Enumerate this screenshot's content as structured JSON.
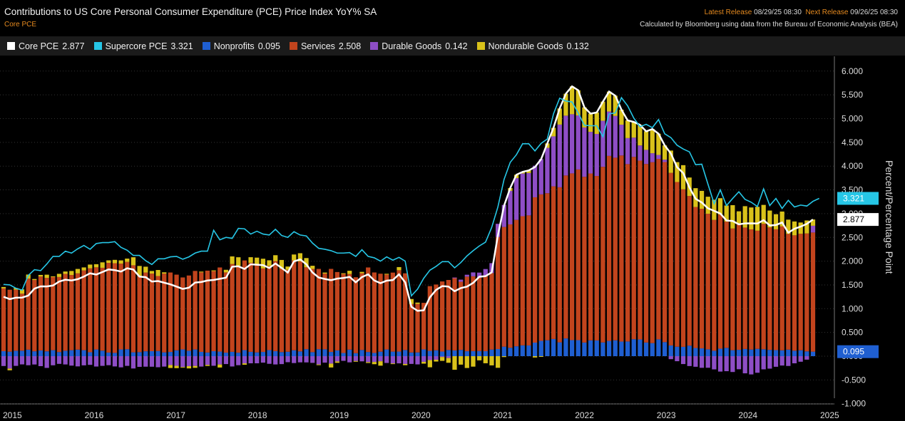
{
  "header": {
    "title": "Contributions to US Core Personal Consumer Expenditure (PCE) Price Index YoY% SA",
    "subtitle": "Core PCE",
    "latest_release_label": "Latest Release",
    "latest_release_value": "08/29/25 08:30",
    "next_release_label": "Next Release",
    "next_release_value": "09/26/25 08:30",
    "source": "Calculated by Bloomberg using data from the Bureau of Economic Analysis (BEA)"
  },
  "legend": [
    {
      "name": "Core PCE",
      "value": "2.877",
      "color": "#ffffff"
    },
    {
      "name": "Supercore PCE",
      "value": "3.321",
      "color": "#26c6e6"
    },
    {
      "name": "Nonprofits",
      "value": "0.095",
      "color": "#1f5fd1"
    },
    {
      "name": "Services",
      "value": "2.508",
      "color": "#c2441d"
    },
    {
      "name": "Durable Goods",
      "value": "0.142",
      "color": "#8e4ec6"
    },
    {
      "name": "Nondurable Goods",
      "value": "0.132",
      "color": "#d9c21a"
    }
  ],
  "chart_data": {
    "type": "bar",
    "ylabel": "Percent/Percentage Point",
    "ylim": [
      -1.0,
      6.25
    ],
    "y_ticks": [
      "6.000",
      "5.500",
      "5.000",
      "4.500",
      "4.000",
      "3.500",
      "3.000",
      "2.500",
      "2.000",
      "1.500",
      "1.000",
      "0.500",
      "0.000",
      "-0.500",
      "-1.000"
    ],
    "x_ticks": [
      "2015",
      "2016",
      "2017",
      "2018",
      "2019",
      "2020",
      "2021",
      "2022",
      "2023",
      "2024",
      "2025"
    ],
    "series": [
      {
        "name": "Core PCE",
        "type": "line",
        "values": [
          1.25,
          1.201,
          1.232,
          1.234,
          1.276,
          1.421,
          1.47,
          1.468,
          1.488,
          1.571,
          1.609,
          1.594,
          1.621,
          1.675,
          1.744,
          1.718,
          1.771,
          1.826,
          1.811,
          1.781,
          1.85,
          1.823,
          1.675,
          1.662,
          1.571,
          1.581,
          1.546,
          1.512,
          1.464,
          1.415,
          1.441,
          1.549,
          1.561,
          1.593,
          1.604,
          1.628,
          1.652,
          1.883,
          1.892,
          1.835,
          1.934,
          1.924,
          1.915,
          1.857,
          1.951,
          1.858,
          1.76,
          1.995,
          2.037,
          1.934,
          1.762,
          1.655,
          1.625,
          1.599,
          1.632,
          1.646,
          1.668,
          1.555,
          1.665,
          1.722,
          1.593,
          1.536,
          1.59,
          1.602,
          1.723,
          1.553,
          1.04,
          0.955,
          0.966,
          1.24,
          1.395,
          1.474,
          1.465,
          1.368,
          1.433,
          1.465,
          1.543,
          1.672,
          1.685,
          1.764,
          2.541,
          3.166,
          3.538,
          3.819,
          3.878,
          3.91,
          3.981,
          4.147,
          4.478,
          4.806,
          5.213,
          5.523,
          5.679,
          5.596,
          5.237,
          5.105,
          5.13,
          5.357,
          5.569,
          5.483,
          5.188,
          4.963,
          4.929,
          4.868,
          4.732,
          4.781,
          4.682,
          4.436,
          4.265,
          3.978,
          3.854,
          3.552,
          3.313,
          3.234,
          3.112,
          3.059,
          3.001,
          2.855,
          2.845,
          2.774,
          2.795,
          2.797,
          2.793,
          2.862,
          2.751,
          2.761,
          2.814,
          2.599,
          2.681,
          2.727,
          2.785,
          2.877
        ],
        "color": "#ffffff"
      },
      {
        "name": "Supercore PCE",
        "type": "line",
        "values": [
          1.51,
          1.5,
          1.43,
          1.39,
          1.7,
          1.82,
          1.8,
          1.94,
          2.1,
          2.1,
          2.21,
          2.17,
          2.26,
          2.33,
          2.25,
          2.37,
          2.39,
          2.39,
          2.41,
          2.29,
          2.23,
          2.12,
          2.12,
          2.01,
          1.93,
          2.05,
          2.05,
          2.09,
          2.1,
          2.04,
          2.09,
          2.17,
          2.21,
          2.21,
          2.65,
          2.45,
          2.5,
          2.48,
          2.69,
          2.68,
          2.57,
          2.63,
          2.57,
          2.55,
          2.67,
          2.54,
          2.5,
          2.62,
          2.55,
          2.53,
          2.38,
          2.27,
          2.25,
          2.22,
          2.17,
          2.17,
          2.18,
          2.1,
          2.24,
          2.1,
          2.07,
          2.0,
          2.09,
          2.02,
          2.08,
          2.0,
          1.27,
          1.41,
          1.64,
          1.81,
          1.89,
          1.99,
          1.99,
          1.86,
          1.97,
          2.11,
          2.22,
          2.32,
          2.4,
          2.71,
          3.14,
          3.72,
          4.08,
          4.24,
          4.47,
          4.47,
          4.32,
          4.48,
          4.57,
          5.1,
          5.43,
          5.37,
          5.35,
          5.12,
          4.86,
          4.85,
          4.85,
          4.62,
          5.1,
          5.12,
          5.44,
          5.27,
          5.01,
          4.83,
          4.88,
          4.81,
          4.98,
          4.68,
          4.6,
          4.44,
          4.36,
          4.3,
          4.03,
          4.04,
          3.62,
          3.21,
          3.5,
          3.17,
          3.32,
          3.46,
          3.3,
          3.24,
          3.15,
          3.52,
          3.17,
          3.32,
          3.11,
          3.28,
          3.14,
          3.18,
          3.16,
          3.26,
          3.321
        ],
        "color": "#26c6e6"
      },
      {
        "name": "Nonprofits",
        "type": "stacked_bar",
        "values": [
          0.105,
          0.095,
          0.114,
          0.115,
          0.137,
          0.103,
          0.121,
          0.102,
          0.126,
          0.087,
          0.114,
          0.126,
          0.138,
          0.126,
          0.083,
          0.141,
          0.116,
          0.076,
          0.069,
          0.142,
          0.147,
          0.081,
          0.085,
          0.103,
          0.105,
          0.108,
          0.08,
          0.089,
          0.123,
          0.142,
          0.114,
          0.141,
          0.09,
          0.077,
          0.105,
          0.097,
          0.074,
          0.091,
          0.073,
          0.127,
          0.091,
          0.08,
          0.089,
          0.128,
          0.106,
          0.086,
          0.093,
          0.124,
          0.101,
          0.147,
          0.085,
          0.147,
          0.144,
          0.089,
          0.121,
          0.067,
          0.138,
          0.063,
          0.13,
          0.088,
          0.068,
          0.095,
          0.141,
          0.096,
          0.097,
          0.129,
          0.078,
          0.079,
          0.142,
          0.112,
          0.124,
          0.097,
          0.13,
          0.121,
          0.133,
          0.104,
          0.107,
          0.109,
          0.105,
          0.14,
          0.15,
          0.2,
          0.177,
          0.208,
          0.228,
          0.226,
          0.285,
          0.322,
          0.335,
          0.361,
          0.291,
          0.373,
          0.338,
          0.337,
          0.287,
          0.333,
          0.331,
          0.289,
          0.321,
          0.334,
          0.307,
          0.309,
          0.357,
          0.352,
          0.288,
          0.275,
          0.354,
          0.296,
          0.226,
          0.199,
          0.196,
          0.222,
          0.172,
          0.164,
          0.144,
          0.114,
          0.158,
          0.175,
          0.126,
          0.134,
          0.151,
          0.14,
          0.155,
          0.145,
          0.133,
          0.128,
          0.123,
          0.138,
          0.115,
          0.125,
          0.101,
          0.095
        ],
        "color": "#1f5fd1"
      },
      {
        "name": "Services",
        "type": "stacked_bar",
        "values": [
          1.321,
          1.304,
          1.285,
          1.2,
          1.495,
          1.5,
          1.555,
          1.545,
          1.553,
          1.579,
          1.618,
          1.582,
          1.605,
          1.679,
          1.765,
          1.729,
          1.744,
          1.887,
          1.887,
          1.806,
          1.837,
          1.832,
          1.6,
          1.657,
          1.633,
          1.579,
          1.658,
          1.672,
          1.593,
          1.515,
          1.584,
          1.653,
          1.674,
          1.723,
          1.685,
          1.77,
          1.689,
          1.848,
          1.828,
          1.888,
          1.874,
          1.843,
          1.757,
          1.771,
          1.895,
          1.754,
          1.725,
          1.892,
          1.892,
          1.723,
          1.75,
          1.69,
          1.595,
          1.748,
          1.65,
          1.669,
          1.592,
          1.598,
          1.615,
          1.779,
          1.694,
          1.641,
          1.581,
          1.663,
          1.712,
          1.615,
          1.019,
          1.02,
          0.981,
          1.362,
          1.384,
          1.476,
          1.474,
          1.533,
          1.433,
          1.57,
          1.574,
          1.543,
          1.596,
          1.608,
          2.358,
          2.519,
          2.597,
          2.661,
          2.718,
          2.737,
          3.059,
          3.083,
          3.095,
          3.213,
          3.264,
          3.43,
          3.509,
          3.593,
          3.488,
          3.512,
          3.461,
          3.696,
          3.894,
          3.843,
          3.917,
          3.733,
          3.837,
          3.764,
          3.757,
          3.808,
          3.798,
          3.789,
          3.632,
          3.467,
          3.316,
          3.149,
          2.968,
          2.938,
          2.853,
          2.754,
          2.823,
          2.656,
          2.561,
          2.644,
          2.556,
          2.529,
          2.486,
          2.639,
          2.577,
          2.542,
          2.608,
          2.436,
          2.429,
          2.451,
          2.482,
          2.508
        ],
        "color": "#c2441d"
      },
      {
        "name": "Durable Goods",
        "type": "stacked_bar",
        "values": [
          -0.207,
          -0.261,
          -0.204,
          -0.173,
          -0.191,
          -0.175,
          -0.21,
          -0.247,
          -0.192,
          -0.162,
          -0.174,
          -0.199,
          -0.215,
          -0.193,
          -0.183,
          -0.218,
          -0.204,
          -0.19,
          -0.216,
          -0.235,
          -0.204,
          -0.259,
          -0.225,
          -0.221,
          -0.222,
          -0.233,
          -0.219,
          -0.186,
          -0.203,
          -0.228,
          -0.21,
          -0.205,
          -0.219,
          -0.184,
          -0.202,
          -0.175,
          -0.166,
          -0.217,
          -0.19,
          -0.151,
          -0.15,
          -0.15,
          -0.136,
          -0.161,
          -0.174,
          -0.167,
          -0.127,
          -0.145,
          -0.13,
          -0.131,
          -0.141,
          -0.174,
          -0.136,
          -0.156,
          -0.111,
          -0.098,
          -0.13,
          -0.102,
          -0.109,
          -0.125,
          -0.122,
          -0.107,
          -0.143,
          -0.152,
          -0.151,
          -0.164,
          -0.163,
          -0.173,
          -0.119,
          -0.082,
          -0.075,
          -0.017,
          -0.039,
          0.0,
          0.045,
          0.04,
          0.082,
          0.107,
          0.133,
          0.21,
          0.278,
          0.465,
          0.705,
          0.879,
          0.898,
          0.892,
          0.665,
          0.743,
          0.955,
          1.052,
          1.319,
          1.259,
          1.245,
          1.137,
          1.039,
          0.876,
          0.885,
          0.969,
          0.934,
          0.879,
          0.648,
          0.548,
          0.406,
          0.319,
          0.297,
          0.188,
          0.083,
          0.051,
          -0.063,
          -0.106,
          -0.166,
          -0.208,
          -0.223,
          -0.245,
          -0.244,
          -0.278,
          -0.324,
          -0.316,
          -0.333,
          -0.275,
          -0.361,
          -0.384,
          -0.349,
          -0.277,
          -0.262,
          -0.223,
          -0.197,
          -0.206,
          -0.15,
          -0.117,
          -0.073,
          0.142
        ],
        "color": "#8e4ec6"
      },
      {
        "name": "Nondurable Goods",
        "type": "stacked_bar",
        "values": [
          0.03,
          -0.036,
          0.035,
          0.092,
          0.086,
          0.021,
          0.034,
          0.068,
          0.001,
          0.067,
          0.05,
          0.085,
          0.093,
          0.063,
          0.08,
          0.066,
          0.115,
          0.054,
          0.071,
          0.068,
          0.07,
          0.169,
          0.214,
          0.123,
          0.055,
          0.127,
          0.027,
          -0.063,
          -0.049,
          -0.014,
          -0.048,
          -0.04,
          0.016,
          -0.023,
          0.016,
          -0.064,
          0.055,
          0.161,
          0.181,
          -0.029,
          0.118,
          0.151,
          0.205,
          0.119,
          0.124,
          0.185,
          0.069,
          0.124,
          0.174,
          0.195,
          0.068,
          -0.008,
          0.021,
          -0.082,
          -0.029,
          0.009,
          0.068,
          -0.003,
          0.029,
          -0.019,
          -0.047,
          -0.093,
          0.012,
          -0.005,
          0.066,
          -0.026,
          0.106,
          0.029,
          -0.038,
          -0.152,
          -0.038,
          -0.082,
          -0.1,
          -0.286,
          -0.178,
          -0.249,
          -0.22,
          -0.088,
          -0.149,
          -0.194,
          -0.245,
          -0.019,
          0.059,
          0.071,
          0.034,
          0.055,
          -0.028,
          -0.001,
          0.093,
          0.18,
          0.339,
          0.461,
          0.587,
          0.529,
          0.423,
          0.383,
          0.453,
          0.403,
          0.42,
          0.426,
          0.316,
          0.373,
          0.329,
          0.433,
          0.39,
          0.51,
          0.447,
          0.3,
          0.47,
          0.418,
          0.508,
          0.389,
          0.396,
          0.377,
          0.359,
          0.424,
          0.344,
          0.34,
          0.491,
          0.271,
          0.45,
          0.461,
          0.503,
          0.4,
          0.355,
          0.318,
          0.313,
          0.3,
          0.291,
          0.237,
          0.273,
          0.132
        ],
        "color": "#d9c21a"
      }
    ],
    "axis_side": "right",
    "grid": "dotted",
    "last_value_tags": [
      "3.321",
      "2.877",
      "0.095"
    ]
  }
}
